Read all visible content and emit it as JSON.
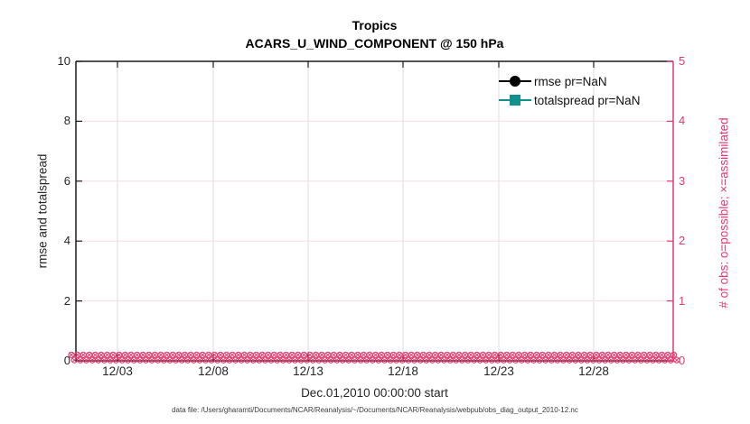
{
  "caption": {
    "text": "data file: /Users/gharamti/Documents/NCAR/Reanalysis/~/Documents/NCAR/Reanalysis/webpub/obs_diag_output_2010-12.nc"
  },
  "chart_data": {
    "type": "line",
    "title": "Tropics",
    "subtitle": "ACARS_U_WIND_COMPONENT @ 150 hPa",
    "xlabel": "Dec.01,2010 00:00:00 start",
    "ylabel_left": "rmse and totalspread",
    "ylabel_right": "# of obs: o=possible; ×=assimilated",
    "x_tick_labels": [
      "12/03",
      "12/08",
      "12/13",
      "12/18",
      "12/23",
      "12/28"
    ],
    "x_range_note": "Dec 01 2010 00:00 through end of month, ticks every 5 days",
    "y_left": {
      "ticks": [
        0,
        2,
        4,
        6,
        8,
        10
      ],
      "range": [
        0,
        10
      ]
    },
    "y_right": {
      "ticks": [
        0,
        1,
        2,
        3,
        4,
        5
      ],
      "range": [
        0,
        5
      ]
    },
    "series": [
      {
        "name": "rmse pr=NaN",
        "axis": "left",
        "color": "#000000",
        "marker": "filled-circle",
        "values": "NaN - no curve drawn"
      },
      {
        "name": "totalspread pr=NaN",
        "axis": "left",
        "color": "#12918c",
        "marker": "filled-square",
        "values": "NaN - no curve drawn"
      },
      {
        "name": "# of obs possible (o)",
        "axis": "right",
        "color": "#e23a6e",
        "marker": "o",
        "values": "~0 at every assimilation time across the whole month (dense band at y=0)"
      },
      {
        "name": "# of obs assimilated (×)",
        "axis": "right",
        "color": "#e23a6e",
        "marker": "x",
        "values": "~0 at every assimilation time across the whole month (dense band at y=0)"
      }
    ],
    "legend": {
      "position": "top-right",
      "box": false
    },
    "grid": {
      "vertical_color": "#dedede",
      "horizontal_color": "#f8dce8",
      "grid_on": true
    },
    "colors": {
      "left_axis": "#1a1a1a",
      "right_axis": "#e23a6e",
      "rmse": "#000000",
      "totalspread": "#12918c",
      "obs_markers": "#e23a6e"
    }
  }
}
